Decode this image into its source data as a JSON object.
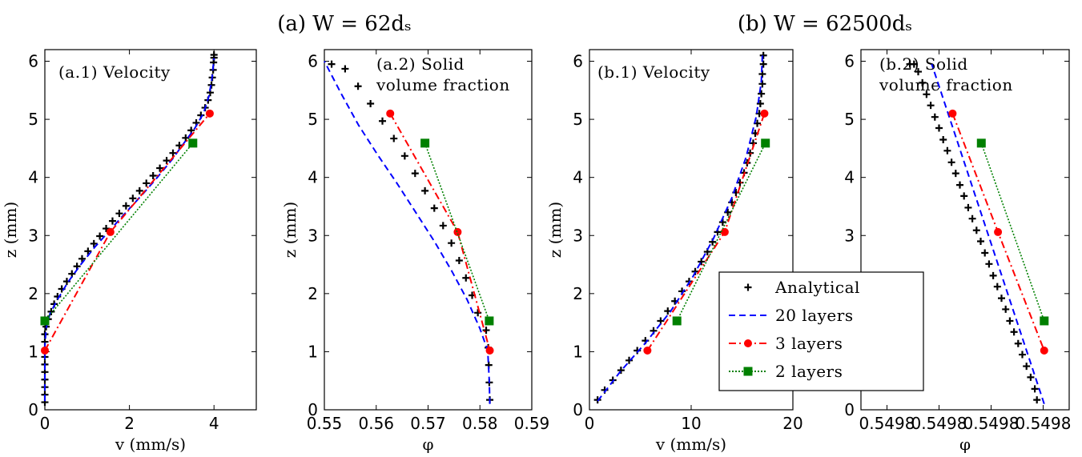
{
  "figure": {
    "title_a": "(a) W = 62dₛ",
    "title_b": "(b) W = 62500dₛ"
  },
  "legend": {
    "items": [
      {
        "label": "Analytical",
        "style": "plus"
      },
      {
        "label": "20 layers",
        "style": "dashed"
      },
      {
        "label": "3 layers",
        "style": "dashdot-circle"
      },
      {
        "label": "2 layers",
        "style": "dotted-square"
      }
    ]
  },
  "colors": {
    "analytical": "#000000",
    "layers20": "#0000ff",
    "layers3": "#ff0000",
    "layers2": "#008000"
  },
  "chart_data": [
    {
      "type": "line",
      "id": "a1",
      "annotation": [
        "(a.1) Velocity"
      ],
      "xlabel": "v (mm/s)",
      "ylabel": "z (mm)",
      "xlim": [
        0,
        5
      ],
      "ylim": [
        0,
        6.2
      ],
      "xticks": [
        0,
        2,
        4
      ],
      "xtick_labels": [
        "0",
        "2",
        "4"
      ],
      "yticks": [
        0,
        1,
        2,
        3,
        4,
        5,
        6
      ],
      "ytick_labels": [
        "0",
        "1",
        "2",
        "3",
        "4",
        "5",
        "6"
      ],
      "series": [
        {
          "key": "analytical",
          "style": "plus",
          "x": [
            0,
            0,
            0,
            0,
            0,
            0,
            0,
            0,
            0,
            0,
            0.03,
            0.08,
            0.15,
            0.22,
            0.3,
            0.4,
            0.52,
            0.64,
            0.76,
            0.88,
            1.02,
            1.16,
            1.3,
            1.45,
            1.6,
            1.76,
            1.92,
            2.08,
            2.24,
            2.4,
            2.56,
            2.72,
            2.88,
            3.03,
            3.18,
            3.33,
            3.46,
            3.58,
            3.69,
            3.79,
            3.86,
            3.91,
            3.94,
            3.96,
            3.98,
            3.99,
            4.0,
            4.0
          ],
          "y": [
            0.13,
            0.26,
            0.39,
            0.52,
            0.65,
            0.78,
            0.91,
            1.04,
            1.17,
            1.3,
            1.43,
            1.56,
            1.69,
            1.82,
            1.95,
            2.08,
            2.21,
            2.34,
            2.47,
            2.6,
            2.73,
            2.86,
            2.99,
            3.12,
            3.25,
            3.38,
            3.51,
            3.64,
            3.77,
            3.9,
            4.03,
            4.16,
            4.29,
            4.42,
            4.55,
            4.68,
            4.81,
            4.94,
            5.07,
            5.2,
            5.33,
            5.46,
            5.59,
            5.72,
            5.85,
            5.98,
            6.06,
            6.11
          ]
        },
        {
          "key": "layers20",
          "style": "dashed",
          "x": [
            0,
            0,
            0,
            0,
            0.03,
            0.12,
            0.3,
            0.55,
            0.85,
            1.18,
            1.55,
            1.92,
            2.3,
            2.66,
            3.0,
            3.3,
            3.55,
            3.75,
            3.88,
            3.95,
            3.98,
            4.0
          ],
          "y": [
            0.15,
            0.5,
            0.85,
            1.1,
            1.4,
            1.65,
            1.9,
            2.2,
            2.5,
            2.8,
            3.1,
            3.4,
            3.7,
            4.0,
            4.3,
            4.6,
            4.85,
            5.1,
            5.4,
            5.7,
            5.9,
            6.05
          ]
        },
        {
          "key": "layers3",
          "style": "dashdot-circle",
          "x": [
            0,
            1.55,
            3.9
          ],
          "y": [
            1.02,
            3.06,
            5.1
          ]
        },
        {
          "key": "layers2",
          "style": "dotted-square",
          "x": [
            0,
            3.5
          ],
          "y": [
            1.53,
            4.59
          ]
        }
      ]
    },
    {
      "type": "line",
      "id": "a2",
      "annotation": [
        "(a.2) Solid",
        "volume fraction"
      ],
      "xlabel": "φ",
      "ylabel": "z (mm)",
      "xlim": [
        0.55,
        0.59
      ],
      "ylim": [
        0,
        6.2
      ],
      "xticks": [
        0.55,
        0.56,
        0.57,
        0.58,
        0.59
      ],
      "xtick_labels": [
        "0.55",
        "0.56",
        "0.57",
        "0.58",
        "0.59"
      ],
      "yticks": [
        0,
        1,
        2,
        3,
        4,
        5,
        6
      ],
      "ytick_labels": [
        "0",
        "1",
        "2",
        "3",
        "4",
        "5",
        "6"
      ],
      "series": [
        {
          "key": "analytical",
          "style": "plus",
          "x": [
            0.5819,
            0.5818,
            0.5817,
            0.5816,
            0.5812,
            0.5796,
            0.5785,
            0.5773,
            0.576,
            0.5745,
            0.5729,
            0.5712,
            0.5694,
            0.5675,
            0.5655,
            0.5634,
            0.5612,
            0.5589,
            0.5565,
            0.554,
            0.5514
          ],
          "y": [
            0.17,
            0.47,
            0.77,
            1.07,
            1.37,
            1.67,
            1.97,
            2.27,
            2.57,
            2.87,
            3.17,
            3.47,
            3.77,
            4.07,
            4.37,
            4.67,
            4.97,
            5.27,
            5.57,
            5.87,
            5.95
          ]
        },
        {
          "key": "layers20",
          "style": "dashed",
          "x": [
            0.5819,
            0.5818,
            0.5815,
            0.58,
            0.5775,
            0.5745,
            0.5712,
            0.5676,
            0.564,
            0.5602,
            0.5566,
            0.5532,
            0.55
          ],
          "y": [
            0.1,
            0.5,
            1.02,
            1.4,
            1.9,
            2.4,
            2.9,
            3.4,
            3.9,
            4.4,
            4.9,
            5.45,
            6.0
          ]
        },
        {
          "key": "layers3",
          "style": "dashdot-circle",
          "x": [
            0.5627,
            0.5757,
            0.5819
          ],
          "y": [
            5.1,
            3.06,
            1.02
          ]
        },
        {
          "key": "layers2",
          "style": "dotted-square",
          "x": [
            0.5694,
            0.5818
          ],
          "y": [
            4.59,
            1.53
          ]
        }
      ]
    },
    {
      "type": "line",
      "id": "b1",
      "annotation": [
        "(b.1) Velocity"
      ],
      "xlabel": "v (mm/s)",
      "ylabel": "z (mm)",
      "xlim": [
        0,
        20
      ],
      "ylim": [
        0,
        6.2
      ],
      "xticks": [
        0,
        10,
        20
      ],
      "xtick_labels": [
        "0",
        "10",
        "20"
      ],
      "yticks": [
        0,
        1,
        2,
        3,
        4,
        5,
        6
      ],
      "ytick_labels": [
        "0",
        "1",
        "2",
        "3",
        "4",
        "5",
        "6"
      ],
      "series": [
        {
          "key": "analytical",
          "style": "plus",
          "x": [
            0.8,
            1.5,
            2.3,
            3.1,
            3.9,
            4.7,
            5.5,
            6.3,
            7.0,
            7.7,
            8.4,
            9.1,
            9.8,
            10.4,
            11.0,
            11.6,
            12.1,
            12.6,
            13.1,
            13.6,
            14.0,
            14.4,
            14.8,
            15.2,
            15.5,
            15.8,
            16.1,
            16.3,
            16.5,
            16.7,
            16.8,
            16.9,
            17.0,
            17.0,
            17.1,
            17.1
          ],
          "y": [
            0.17,
            0.34,
            0.51,
            0.68,
            0.85,
            1.02,
            1.19,
            1.36,
            1.53,
            1.7,
            1.87,
            2.04,
            2.21,
            2.38,
            2.55,
            2.72,
            2.89,
            3.06,
            3.23,
            3.4,
            3.57,
            3.74,
            3.91,
            4.08,
            4.25,
            4.42,
            4.59,
            4.76,
            4.93,
            5.1,
            5.27,
            5.44,
            5.61,
            5.78,
            5.95,
            6.1
          ]
        },
        {
          "key": "layers20",
          "style": "dashed",
          "x": [
            0.8,
            3.0,
            5.5,
            8.0,
            10.2,
            12.2,
            14.0,
            15.4,
            16.4,
            16.9,
            17.0
          ],
          "y": [
            0.15,
            0.65,
            1.15,
            1.7,
            2.3,
            2.95,
            3.65,
            4.35,
            5.05,
            5.65,
            6.1
          ]
        },
        {
          "key": "layers3",
          "style": "dashdot-circle",
          "x": [
            5.7,
            13.3,
            17.2
          ],
          "y": [
            1.02,
            3.06,
            5.1
          ]
        },
        {
          "key": "layers2",
          "style": "dotted-square",
          "x": [
            8.6,
            17.3
          ],
          "y": [
            1.53,
            4.59
          ]
        }
      ]
    },
    {
      "type": "line",
      "id": "b2",
      "annotation": [
        "(b.2) Solid",
        "volume fraction"
      ],
      "xlabel": "φ",
      "ylabel": "",
      "xlim": [
        0,
        1
      ],
      "ylim": [
        0,
        6.2
      ],
      "xticks": [
        0.125,
        0.375,
        0.625,
        0.875
      ],
      "xtick_labels": [
        "0.5498",
        "0.5498",
        "0.5498",
        "0.5498"
      ],
      "yticks": [
        0,
        1,
        2,
        3,
        4,
        5,
        6
      ],
      "ytick_labels": [
        "0",
        "1",
        "2",
        "3",
        "4",
        "5",
        "6"
      ],
      "series": [
        {
          "key": "analytical",
          "style": "plus",
          "x": [
            0.845,
            0.835,
            0.815,
            0.795,
            0.775,
            0.755,
            0.735,
            0.715,
            0.695,
            0.675,
            0.655,
            0.635,
            0.615,
            0.595,
            0.575,
            0.555,
            0.535,
            0.515,
            0.495,
            0.475,
            0.455,
            0.435,
            0.415,
            0.395,
            0.375,
            0.355,
            0.335,
            0.315,
            0.295,
            0.275,
            0.255,
            0.235
          ],
          "y": [
            0.17,
            0.36,
            0.56,
            0.75,
            0.95,
            1.14,
            1.34,
            1.53,
            1.73,
            1.92,
            2.12,
            2.31,
            2.51,
            2.7,
            2.9,
            3.09,
            3.29,
            3.48,
            3.68,
            3.87,
            4.07,
            4.26,
            4.46,
            4.65,
            4.85,
            5.04,
            5.24,
            5.43,
            5.63,
            5.82,
            5.95,
            5.95
          ]
        },
        {
          "key": "layers20",
          "style": "dashed",
          "x": [
            0.88,
            0.34
          ],
          "y": [
            0.1,
            5.95
          ]
        },
        {
          "key": "layers3",
          "style": "dashdot-circle",
          "x": [
            0.44,
            0.658,
            0.88
          ],
          "y": [
            5.1,
            3.06,
            1.02
          ]
        },
        {
          "key": "layers2",
          "style": "dotted-square",
          "x": [
            0.578,
            0.88
          ],
          "y": [
            4.59,
            1.53
          ]
        }
      ]
    }
  ]
}
